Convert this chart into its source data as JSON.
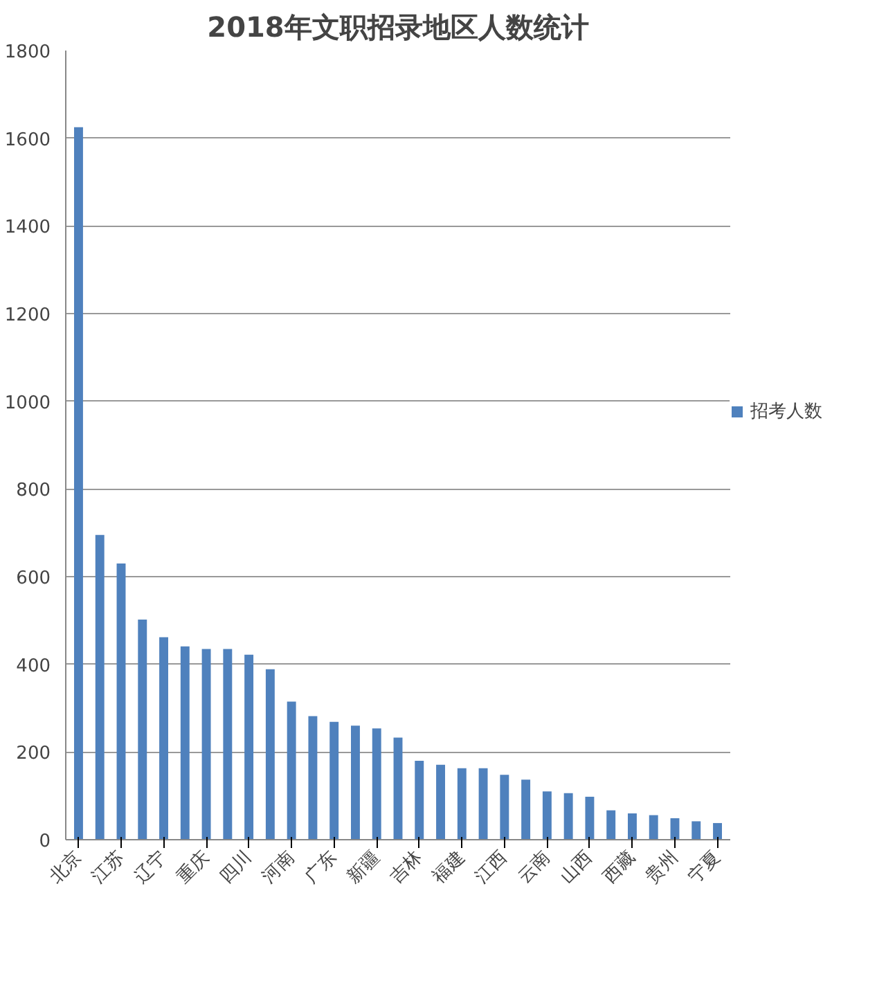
{
  "chart_data": {
    "type": "bar",
    "title": "2018年文职招录地区人数统计",
    "categories": [
      "北京",
      null,
      "江苏",
      null,
      "辽宁",
      null,
      "重庆",
      null,
      "四川",
      null,
      "河南",
      null,
      "广东",
      null,
      "新疆",
      null,
      "吉林",
      null,
      "福建",
      null,
      "江西",
      null,
      "云南",
      null,
      "山西",
      null,
      "西藏",
      null,
      "贵州",
      null,
      "宁夏"
    ],
    "series": [
      {
        "name": "招考人数",
        "color": "#4f81bd",
        "values": [
          1625,
          695,
          630,
          502,
          462,
          441,
          435,
          435,
          422,
          389,
          315,
          282,
          269,
          260,
          254,
          233,
          180,
          171,
          163,
          163,
          148,
          137,
          110,
          106,
          98,
          67,
          60,
          56,
          49,
          42,
          38
        ]
      }
    ],
    "ylim": [
      0,
      1800
    ],
    "yticks": [
      0,
      200,
      400,
      600,
      800,
      1000,
      1200,
      1400,
      1600,
      1800
    ],
    "grid": "y",
    "legend": "right"
  }
}
